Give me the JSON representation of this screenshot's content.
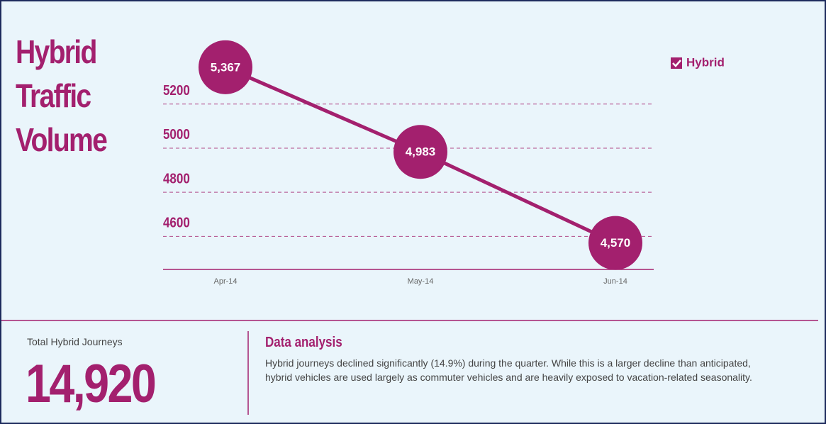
{
  "chart_data": {
    "type": "line",
    "title": "Hybrid Traffic Volume",
    "categories": [
      "Apr-14",
      "May-14",
      "Jun-14"
    ],
    "series": [
      {
        "name": "Hybrid",
        "color": "#a3206e",
        "values": [
          5367,
          4983,
          4570
        ],
        "value_labels": [
          "5,367",
          "4,983",
          "4,570"
        ]
      }
    ],
    "ylim": [
      4450,
      5450
    ],
    "yticks": [
      4600,
      4800,
      5000,
      5200
    ],
    "grid": true,
    "legend": "top-right"
  },
  "summary": {
    "total_label": "Total Hybrid Journeys",
    "total_value": "14,920",
    "analysis_title": "Data analysis",
    "analysis_text": "Hybrid journeys declined significantly (14.9%) during the quarter. While this is a larger decline than anticipated, hybrid vehicles are used largely as commuter vehicles and are heavily exposed to vacation-related seasonality."
  }
}
